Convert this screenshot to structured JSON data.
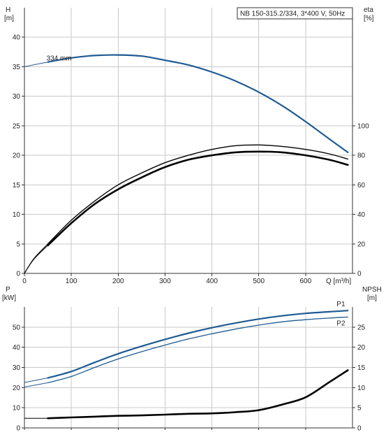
{
  "chart_data": [
    {
      "panel": "top",
      "type": "line",
      "title": "NB 150-315.2/334, 3*400 V, 50Hz",
      "xlabel": "Q [m³/h]",
      "ylabel_left": [
        "H",
        "[m]"
      ],
      "ylabel_right": [
        "eta",
        "[%]"
      ],
      "xlim": [
        0,
        700
      ],
      "ylim_left": [
        0,
        45
      ],
      "ylim_right_eta": [
        0,
        180
      ],
      "x_ticks": [
        "0",
        "100",
        "200",
        "300",
        "400",
        "500",
        "600"
      ],
      "y_left_ticks": [
        "0",
        "5",
        "10",
        "15",
        "20",
        "25",
        "30",
        "35",
        "40"
      ],
      "y_right_ticks": [
        "0",
        "20",
        "40",
        "60",
        "80",
        "100"
      ],
      "grid": true,
      "annotation": "334 mm",
      "series": [
        {
          "kind": "H",
          "axis": "left",
          "color": "#1f5a94",
          "points": [
            [
              0,
              35.0
            ],
            [
              50,
              35.8
            ],
            [
              100,
              36.5
            ],
            [
              150,
              36.9
            ],
            [
              200,
              37.0
            ],
            [
              250,
              36.8
            ],
            [
              300,
              36.1
            ],
            [
              350,
              35.3
            ],
            [
              400,
              34.1
            ],
            [
              450,
              32.6
            ],
            [
              500,
              30.7
            ],
            [
              550,
              28.4
            ],
            [
              600,
              25.7
            ],
            [
              650,
              22.8
            ],
            [
              690,
              20.5
            ]
          ],
          "dashed_until": 50
        },
        {
          "kind": "eta-upper",
          "axis": "right",
          "color": "#000000",
          "points": [
            [
              0,
              0
            ],
            [
              20,
              10
            ],
            [
              50,
              20
            ],
            [
              100,
              36
            ],
            [
              150,
              49
            ],
            [
              200,
              60
            ],
            [
              250,
              68
            ],
            [
              300,
              75
            ],
            [
              350,
              80
            ],
            [
              400,
              84
            ],
            [
              450,
              86.5
            ],
            [
              500,
              87
            ],
            [
              550,
              86
            ],
            [
              600,
              84
            ],
            [
              650,
              81
            ],
            [
              690,
              77.5
            ]
          ],
          "dashed_until": 50
        },
        {
          "kind": "eta-lower",
          "axis": "right",
          "color": "#000000",
          "points": [
            [
              0,
              0
            ],
            [
              20,
              9.5
            ],
            [
              50,
              19
            ],
            [
              100,
              34
            ],
            [
              150,
              47
            ],
            [
              200,
              57
            ],
            [
              250,
              65
            ],
            [
              300,
              72
            ],
            [
              350,
              77
            ],
            [
              400,
              80
            ],
            [
              450,
              82
            ],
            [
              500,
              82.5
            ],
            [
              550,
              82
            ],
            [
              600,
              80
            ],
            [
              650,
              77
            ],
            [
              690,
              73.5
            ]
          ],
          "dashed_until": 50
        }
      ]
    },
    {
      "panel": "bottom",
      "type": "line",
      "ylabel_left": [
        "P",
        "[kW]"
      ],
      "ylabel_right": [
        "NPSH",
        "[m]"
      ],
      "xlim": [
        0,
        700
      ],
      "ylim_left": [
        0,
        60
      ],
      "ylim_right": [
        0,
        30
      ],
      "y_left_ticks": [
        "0",
        "10",
        "20",
        "30",
        "40",
        "50"
      ],
      "y_right_ticks": [
        "0",
        "5",
        "10",
        "15",
        "20",
        "25"
      ],
      "grid": true,
      "series": [
        {
          "name": "P1",
          "axis": "left",
          "color": "#1f5a94",
          "points": [
            [
              0,
              22.5
            ],
            [
              50,
              24.8
            ],
            [
              100,
              28
            ],
            [
              150,
              32.5
            ],
            [
              200,
              36.8
            ],
            [
              250,
              40.5
            ],
            [
              300,
              43.9
            ],
            [
              350,
              47
            ],
            [
              400,
              49.7
            ],
            [
              450,
              52
            ],
            [
              500,
              54
            ],
            [
              550,
              55.6
            ],
            [
              600,
              56.8
            ],
            [
              650,
              57.6
            ],
            [
              690,
              58.2
            ]
          ],
          "dashed_until": 50
        },
        {
          "name": "P2",
          "axis": "left",
          "color": "#1f5a94",
          "points": [
            [
              0,
              20.3
            ],
            [
              50,
              22.4
            ],
            [
              100,
              25.5
            ],
            [
              150,
              30
            ],
            [
              200,
              34.2
            ],
            [
              250,
              37.8
            ],
            [
              300,
              41.1
            ],
            [
              350,
              44.1
            ],
            [
              400,
              46.7
            ],
            [
              450,
              49
            ],
            [
              500,
              51
            ],
            [
              550,
              52.6
            ],
            [
              600,
              53.7
            ],
            [
              650,
              54.5
            ],
            [
              690,
              55
            ]
          ],
          "dashed_until": 50
        },
        {
          "name": "NPSH",
          "axis": "right",
          "color": "#000000",
          "points": [
            [
              0,
              2.4
            ],
            [
              50,
              2.4
            ],
            [
              100,
              2.6
            ],
            [
              150,
              2.8
            ],
            [
              200,
              3.0
            ],
            [
              250,
              3.1
            ],
            [
              300,
              3.3
            ],
            [
              350,
              3.5
            ],
            [
              400,
              3.6
            ],
            [
              450,
              3.9
            ],
            [
              500,
              4.4
            ],
            [
              550,
              5.8
            ],
            [
              600,
              7.6
            ],
            [
              650,
              11.3
            ],
            [
              690,
              14.3
            ]
          ],
          "dashed_until": 50
        }
      ]
    }
  ]
}
